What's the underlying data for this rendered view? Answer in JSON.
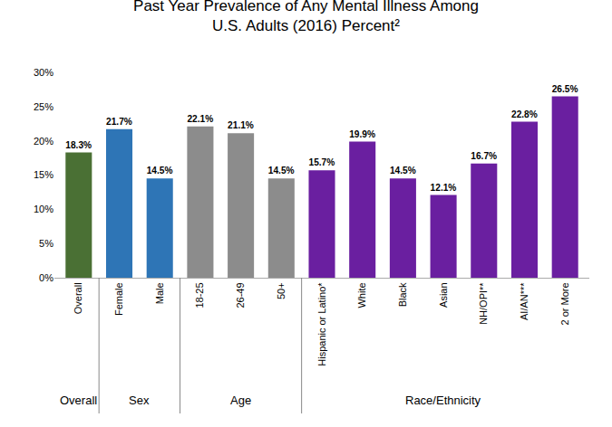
{
  "chart_data": {
    "type": "bar",
    "title": "Past Year Prevalence of Any Mental Illness Among\nU.S. Adults (2016) Percent²",
    "categories": [
      "Overall",
      "Female",
      "Male",
      "18-25",
      "26-49",
      "50+",
      "Hispanic or Latino*",
      "White",
      "Black",
      "Asian",
      "NH/OPI**",
      "AI/AN***",
      "2 or More"
    ],
    "values": [
      18.3,
      21.7,
      14.5,
      22.1,
      21.1,
      14.5,
      15.7,
      19.9,
      14.5,
      12.1,
      16.7,
      22.8,
      26.5
    ],
    "value_labels": [
      "18.3%",
      "21.7%",
      "14.5%",
      "22.1%",
      "21.1%",
      "14.5%",
      "15.7%",
      "19.9%",
      "14.5%",
      "12.1%",
      "16.7%",
      "22.8%",
      "26.5%"
    ],
    "colors": [
      "#4a7034",
      "#2e75b6",
      "#2e75b6",
      "#8c8c8c",
      "#8c8c8c",
      "#8c8c8c",
      "#6a1fa0",
      "#6a1fa0",
      "#6a1fa0",
      "#6a1fa0",
      "#6a1fa0",
      "#6a1fa0",
      "#6a1fa0"
    ],
    "data_labels": true,
    "ylim": [
      0,
      30
    ],
    "yticks": [
      {
        "value": 0,
        "label": "0%"
      },
      {
        "value": 5,
        "label": "5%"
      },
      {
        "value": 10,
        "label": "10%"
      },
      {
        "value": 15,
        "label": "15%"
      },
      {
        "value": 20,
        "label": "20%"
      },
      {
        "value": 25,
        "label": "25%"
      },
      {
        "value": 30,
        "label": "30%"
      }
    ],
    "grid": false,
    "annotations": [
      {
        "text": "Overall",
        "categories": [
          "Overall"
        ]
      },
      {
        "text": "Sex",
        "categories": [
          "Female",
          "Male"
        ]
      },
      {
        "text": "Age",
        "categories": [
          "18-25",
          "26-49",
          "50+"
        ]
      },
      {
        "text": "Race/Ethnicity",
        "categories": [
          "Hispanic or Latino*",
          "White",
          "Black",
          "Asian",
          "NH/OPI**",
          "AI/AN***",
          "2 or More"
        ]
      }
    ]
  }
}
